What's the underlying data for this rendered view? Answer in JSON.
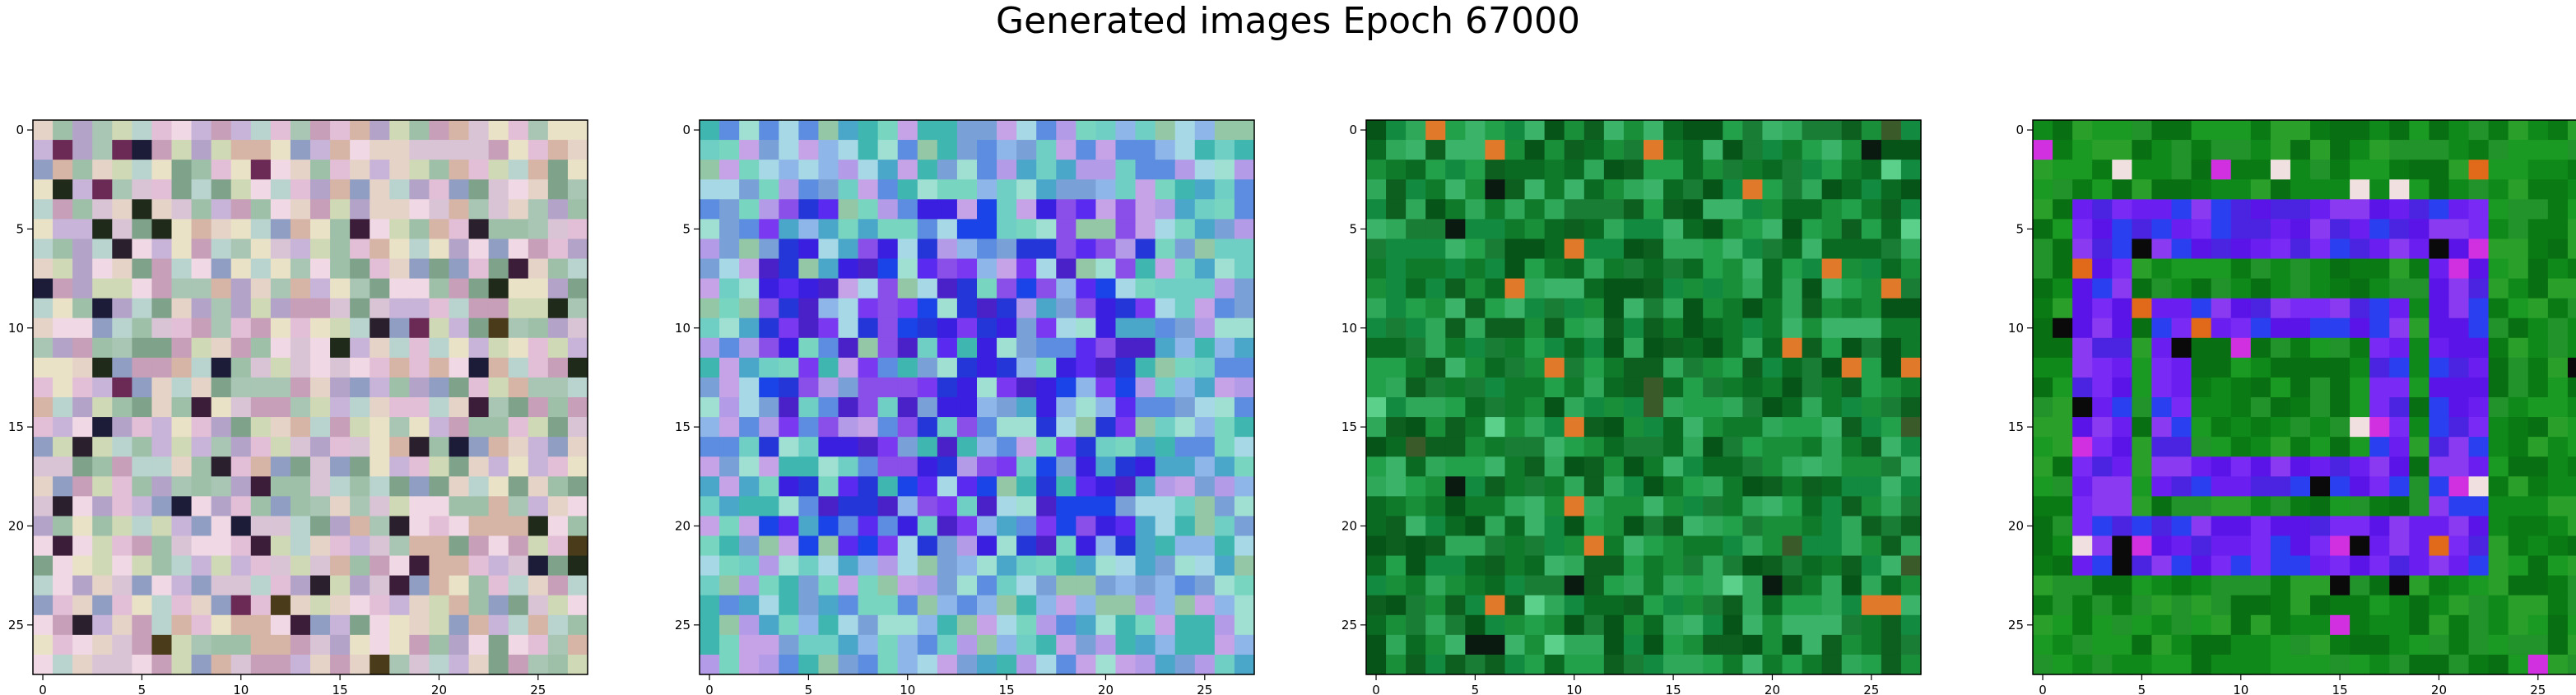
{
  "figure": {
    "title": "Generated images Epoch 67000"
  },
  "panels": [
    {
      "name": "generated-image-1",
      "style": "noisy pastel mix of pinks, lavenders, greens and beige with scattered dark pixels",
      "palette": [
        "#d9c4d6",
        "#c8b3d9",
        "#a9c6b4",
        "#e6d3c8",
        "#b4a3c9",
        "#9fc0a8",
        "#e2bfd6",
        "#cfd9b5",
        "#8f9ec2",
        "#d6b4a6",
        "#f0d9e4",
        "#b9d4cf",
        "#7fa38a",
        "#c79fb8",
        "#e9e2c7"
      ],
      "dark_palette": [
        "#2a1f2d",
        "#3b1d3a",
        "#1f2a1a",
        "#6b2a55",
        "#1c1c38",
        "#4a3b1a"
      ]
    },
    {
      "name": "generated-image-2",
      "style": "noisy cyan, teal, lavender and blue pixels with a bright blue/violet block in the middle",
      "palette": [
        "#6fcfc5",
        "#8fb6e8",
        "#4aa7c9",
        "#b39be8",
        "#78d6c0",
        "#5c8de0",
        "#a6d8e6",
        "#93c7a6",
        "#c6a3e6",
        "#3fb7b0",
        "#7aa0d8",
        "#9fe0d2"
      ],
      "accent_palette": [
        "#3a1fe0",
        "#5a2af0",
        "#2436d8",
        "#7a38f0",
        "#1a44e8",
        "#8a4fe8",
        "#4a20c8"
      ]
    },
    {
      "name": "generated-image-3",
      "style": "mottled green texture with lighter and darker green pixels and a few orange/black specks",
      "palette": [
        "#0f7a2a",
        "#1a8f3a",
        "#0a6a22",
        "#23a04a",
        "#0d5f1f",
        "#2fa85a",
        "#128a3f",
        "#075418",
        "#3bb46a",
        "#1a7d35"
      ],
      "speck_palette": [
        "#e07a2a",
        "#0a1a10",
        "#3a5a2a",
        "#5ad08a"
      ]
    },
    {
      "name": "generated-image-4",
      "style": "green border with a bright violet/blue rectangular frame and green inner pixels",
      "palette": [
        "#0f8a1a",
        "#1a9a22",
        "#0a7a14",
        "#2aa02a",
        "#087012",
        "#22922a"
      ],
      "frame_palette": [
        "#6a1ff0",
        "#5a14e8",
        "#7a2af5",
        "#4a24e0",
        "#2a40f0",
        "#8a3af0"
      ],
      "speck_palette": [
        "#f0e0e0",
        "#e06a1a",
        "#0a0a0a",
        "#d030e0"
      ]
    }
  ],
  "axes": {
    "x_ticks": [
      "0",
      "5",
      "10",
      "15",
      "20",
      "25"
    ],
    "y_ticks": [
      "0",
      "5",
      "10",
      "15",
      "20",
      "25"
    ],
    "tick_values": [
      0,
      5,
      10,
      15,
      20,
      25
    ],
    "grid_size": 28
  }
}
